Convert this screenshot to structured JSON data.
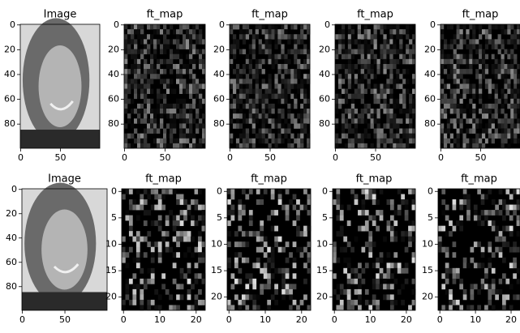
{
  "panels": [
    {
      "title": "Image",
      "xlim": [
        -0.5,
        99.5
      ],
      "ylim": [
        -0.5,
        99.5
      ],
      "y_inverted": true,
      "xticks": [
        0,
        50
      ],
      "yticks": [
        0,
        20,
        40,
        60,
        80
      ]
    },
    {
      "title": "ft_map",
      "xlim": [
        -0.5,
        99.5
      ],
      "ylim": [
        -0.5,
        99.5
      ],
      "y_inverted": true,
      "xticks": [
        0,
        50
      ],
      "yticks": [
        0,
        20,
        40,
        60,
        80
      ]
    },
    {
      "title": "ft_map",
      "xlim": [
        -0.5,
        99.5
      ],
      "ylim": [
        -0.5,
        99.5
      ],
      "y_inverted": true,
      "xticks": [
        0,
        50
      ],
      "yticks": [
        0,
        20,
        40,
        60,
        80
      ]
    },
    {
      "title": "ft_map",
      "xlim": [
        -0.5,
        99.5
      ],
      "ylim": [
        -0.5,
        99.5
      ],
      "y_inverted": true,
      "xticks": [
        0,
        50
      ],
      "yticks": [
        0,
        20,
        40,
        60,
        80
      ]
    },
    {
      "title": "ft_map",
      "xlim": [
        -0.5,
        99.5
      ],
      "ylim": [
        -0.5,
        99.5
      ],
      "y_inverted": true,
      "xticks": [
        0,
        50
      ],
      "yticks": [
        0,
        20,
        40,
        60,
        80
      ]
    },
    {
      "title": "Image",
      "xlim": [
        -0.5,
        99.5
      ],
      "ylim": [
        -0.5,
        99.5
      ],
      "y_inverted": true,
      "xticks": [
        0,
        50
      ],
      "yticks": [
        0,
        20,
        40,
        60,
        80
      ]
    },
    {
      "title": "ft_map",
      "xlim": [
        -0.5,
        22.5
      ],
      "ylim": [
        -0.5,
        22.5
      ],
      "y_inverted": true,
      "xticks": [
        0,
        10,
        20
      ],
      "yticks": [
        0,
        5,
        10,
        15,
        20
      ]
    },
    {
      "title": "ft_map",
      "xlim": [
        -0.5,
        22.5
      ],
      "ylim": [
        -0.5,
        22.5
      ],
      "y_inverted": true,
      "xticks": [
        0,
        10,
        20
      ],
      "yticks": [
        0,
        5,
        10,
        15,
        20
      ]
    },
    {
      "title": "ft_map",
      "xlim": [
        -0.5,
        22.5
      ],
      "ylim": [
        -0.5,
        22.5
      ],
      "y_inverted": true,
      "xticks": [
        0,
        10,
        20
      ],
      "yticks": [
        0,
        5,
        10,
        15,
        20
      ]
    },
    {
      "title": "ft_map",
      "xlim": [
        -0.5,
        22.5
      ],
      "ylim": [
        -0.5,
        22.5
      ],
      "y_inverted": true,
      "xticks": [
        0,
        10,
        20
      ],
      "yticks": [
        0,
        5,
        10,
        15,
        20
      ]
    }
  ]
}
